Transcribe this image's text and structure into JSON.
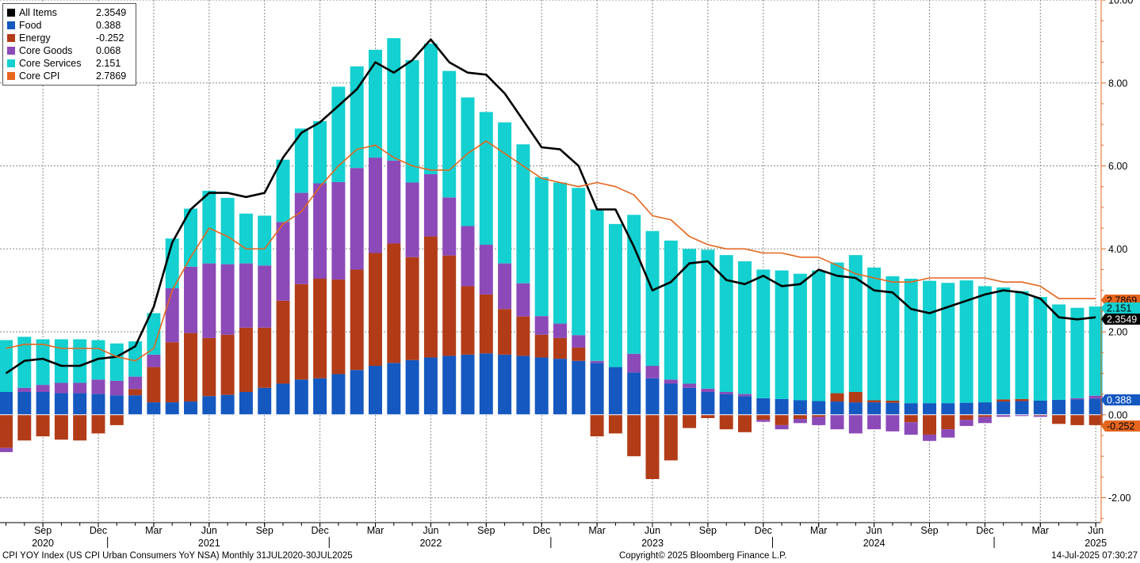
{
  "chart_data": {
    "type": "bar",
    "stacked": true,
    "x_start": "2020-07",
    "months": 60,
    "ylim": [
      -2.6,
      10.0
    ],
    "yticks": [
      "10.00",
      "8.00",
      "6.00",
      "4.00",
      "2.00",
      "0.00",
      "-2.00"
    ],
    "ytick_values": [
      10,
      8,
      6,
      4,
      2,
      0,
      -2
    ],
    "grid": true,
    "legend_position": "top-left",
    "x_tick_labels": [
      {
        "label": "Sep",
        "year": "2020",
        "month_index": 2
      },
      {
        "label": "Dec",
        "year": "",
        "month_index": 5
      },
      {
        "label": "Mar",
        "year": "",
        "month_index": 8
      },
      {
        "label": "Jun",
        "year": "2021",
        "month_index": 11
      },
      {
        "label": "Sep",
        "year": "",
        "month_index": 14
      },
      {
        "label": "Dec",
        "year": "",
        "month_index": 17
      },
      {
        "label": "Mar",
        "year": "",
        "month_index": 20
      },
      {
        "label": "Jun",
        "year": "2022",
        "month_index": 23
      },
      {
        "label": "Sep",
        "year": "",
        "month_index": 26
      },
      {
        "label": "Dec",
        "year": "",
        "month_index": 29
      },
      {
        "label": "Mar",
        "year": "",
        "month_index": 32
      },
      {
        "label": "Jun",
        "year": "2023",
        "month_index": 35
      },
      {
        "label": "Sep",
        "year": "",
        "month_index": 38
      },
      {
        "label": "Dec",
        "year": "",
        "month_index": 41
      },
      {
        "label": "Mar",
        "year": "",
        "month_index": 44
      },
      {
        "label": "Jun",
        "year": "2024",
        "month_index": 47
      },
      {
        "label": "Sep",
        "year": "",
        "month_index": 50
      },
      {
        "label": "Dec",
        "year": "",
        "month_index": 53
      },
      {
        "label": "Mar",
        "year": "",
        "month_index": 56
      },
      {
        "label": "Jun",
        "year": "2025",
        "month_index": 59
      }
    ],
    "series": [
      {
        "name": "Food",
        "type": "bar",
        "color": "#1558c0",
        "value_label": "0.388",
        "values": [
          0.55,
          0.55,
          0.55,
          0.52,
          0.52,
          0.5,
          0.47,
          0.47,
          0.3,
          0.3,
          0.32,
          0.45,
          0.48,
          0.55,
          0.65,
          0.75,
          0.85,
          0.88,
          0.98,
          1.08,
          1.18,
          1.25,
          1.32,
          1.38,
          1.42,
          1.45,
          1.48,
          1.45,
          1.42,
          1.38,
          1.35,
          1.3,
          1.25,
          1.15,
          1.02,
          0.88,
          0.75,
          0.65,
          0.55,
          0.5,
          0.45,
          0.4,
          0.38,
          0.35,
          0.33,
          0.32,
          0.3,
          0.3,
          0.29,
          0.28,
          0.28,
          0.28,
          0.29,
          0.3,
          0.32,
          0.33,
          0.34,
          0.36,
          0.37,
          0.39
        ]
      },
      {
        "name": "Energy",
        "type": "bar",
        "color": "#b23c18",
        "value_label": "-0.252",
        "values": [
          -0.8,
          -0.62,
          -0.52,
          -0.6,
          -0.62,
          -0.45,
          -0.25,
          0.15,
          0.85,
          1.45,
          1.65,
          1.4,
          1.45,
          1.55,
          1.45,
          2.0,
          2.3,
          2.4,
          2.28,
          2.42,
          2.72,
          2.88,
          2.48,
          2.92,
          2.42,
          1.65,
          1.42,
          1.1,
          0.95,
          0.55,
          0.5,
          0.32,
          -0.52,
          -0.45,
          -1.0,
          -1.55,
          -1.1,
          -0.32,
          -0.08,
          -0.35,
          -0.42,
          -0.12,
          -0.25,
          -0.1,
          -0.05,
          0.2,
          0.25,
          0.05,
          0.05,
          -0.18,
          -0.48,
          -0.35,
          -0.12,
          -0.05,
          0.05,
          0.05,
          -0.02,
          -0.22,
          -0.25,
          -0.25
        ]
      },
      {
        "name": "Core Goods",
        "type": "bar",
        "color": "#8c4ab8",
        "value_label": "0.068",
        "values": [
          -0.1,
          0.1,
          0.17,
          0.25,
          0.25,
          0.35,
          0.35,
          0.3,
          0.3,
          1.3,
          1.6,
          1.8,
          1.7,
          1.55,
          1.5,
          1.9,
          2.2,
          2.3,
          2.35,
          2.45,
          2.3,
          2.0,
          1.8,
          1.5,
          1.4,
          1.45,
          1.2,
          1.1,
          0.8,
          0.45,
          0.35,
          0.3,
          0.05,
          0.0,
          0.45,
          0.3,
          0.1,
          0.1,
          0.08,
          0.05,
          0.05,
          -0.05,
          -0.1,
          -0.1,
          -0.2,
          -0.35,
          -0.45,
          -0.35,
          -0.4,
          -0.3,
          -0.15,
          -0.2,
          -0.15,
          -0.15,
          -0.05,
          -0.03,
          -0.03,
          0.0,
          0.03,
          0.07
        ]
      },
      {
        "name": "Core Services",
        "type": "bar",
        "color": "#14d0d0",
        "value_label": "2.151",
        "values": [
          1.25,
          1.23,
          1.1,
          1.05,
          1.05,
          0.95,
          0.9,
          0.85,
          1.0,
          1.2,
          1.4,
          1.75,
          1.6,
          1.2,
          1.2,
          1.5,
          1.55,
          1.5,
          2.3,
          2.45,
          2.6,
          2.95,
          2.95,
          3.15,
          3.05,
          3.1,
          3.2,
          3.4,
          3.35,
          3.35,
          3.4,
          3.55,
          3.65,
          3.45,
          3.35,
          3.25,
          3.35,
          3.25,
          3.35,
          3.3,
          3.2,
          3.1,
          3.1,
          3.05,
          3.15,
          3.15,
          3.3,
          3.2,
          3.0,
          3.0,
          2.95,
          2.9,
          2.95,
          2.8,
          2.7,
          2.6,
          2.5,
          2.3,
          2.18,
          2.15
        ]
      },
      {
        "name": "All Items",
        "type": "line",
        "color": "#000000",
        "value_label": "2.3549",
        "values": [
          1.0,
          1.3,
          1.35,
          1.18,
          1.18,
          1.35,
          1.4,
          1.65,
          2.6,
          4.15,
          4.95,
          5.35,
          5.35,
          5.25,
          5.35,
          6.2,
          6.8,
          7.05,
          7.45,
          7.85,
          8.5,
          8.25,
          8.55,
          9.05,
          8.5,
          8.25,
          8.2,
          7.75,
          7.1,
          6.45,
          6.4,
          6.0,
          4.95,
          4.95,
          4.05,
          3.0,
          3.2,
          3.65,
          3.7,
          3.25,
          3.15,
          3.35,
          3.1,
          3.15,
          3.5,
          3.35,
          3.3,
          3.0,
          2.95,
          2.55,
          2.45,
          2.6,
          2.75,
          2.9,
          3.0,
          2.95,
          2.8,
          2.35,
          2.3,
          2.35
        ]
      },
      {
        "name": "Core CPI",
        "type": "line",
        "color": "#e5661f",
        "value_label": "2.7869",
        "values": [
          1.6,
          1.7,
          1.7,
          1.6,
          1.6,
          1.6,
          1.4,
          1.3,
          1.6,
          3.0,
          3.8,
          4.5,
          4.3,
          4.0,
          4.0,
          4.6,
          4.9,
          5.5,
          6.0,
          6.4,
          6.5,
          6.2,
          6.0,
          5.9,
          5.9,
          6.3,
          6.6,
          6.3,
          6.0,
          5.7,
          5.6,
          5.5,
          5.6,
          5.5,
          5.3,
          4.8,
          4.7,
          4.3,
          4.1,
          4.0,
          4.0,
          3.9,
          3.9,
          3.8,
          3.8,
          3.6,
          3.4,
          3.3,
          3.2,
          3.2,
          3.3,
          3.3,
          3.3,
          3.3,
          3.2,
          3.2,
          3.1,
          2.8,
          2.8,
          2.8
        ]
      }
    ]
  },
  "legend": {
    "items": [
      {
        "name": "All Items",
        "value": "2.3549",
        "color": "#000000"
      },
      {
        "name": "Food",
        "value": "0.388",
        "color": "#1558c0"
      },
      {
        "name": "Energy",
        "value": "-0.252",
        "color": "#b23c18"
      },
      {
        "name": "Core Goods",
        "value": "0.068",
        "color": "#8c4ab8"
      },
      {
        "name": "Core Services",
        "value": "2.151",
        "color": "#14d0d0"
      },
      {
        "name": "Core CPI",
        "value": "2.7869",
        "color": "#e5661f"
      }
    ]
  },
  "footer": {
    "left": "CPI YOY Index (US CPI Urban Consumers YoY NSA)  Monthly 31JUL2020-30JUL2025",
    "center": "Copyright© 2025 Bloomberg Finance L.P.",
    "right": "14-Jul-2025 07:30:27"
  },
  "colors": {
    "axis": "#e5661f",
    "grid": "#808080"
  }
}
